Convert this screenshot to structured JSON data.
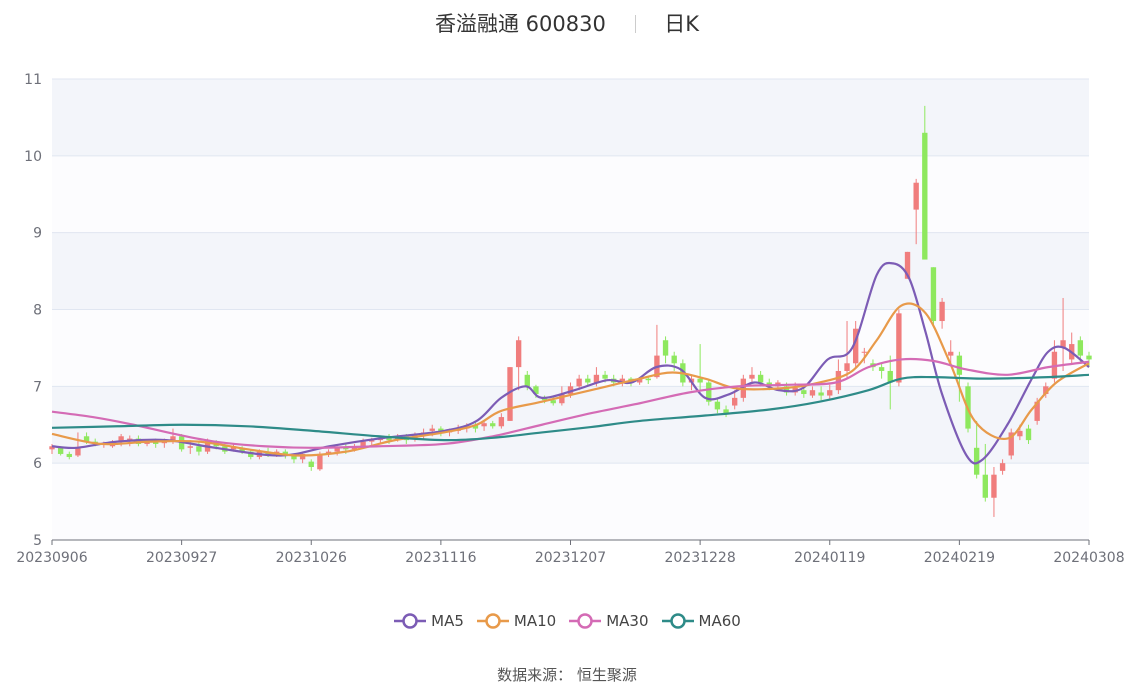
{
  "title": {
    "name": "香溢融通",
    "code": "600830",
    "period": "日K"
  },
  "source": "数据来源：  恒生聚源",
  "colors": {
    "up": "#f07d7d",
    "down": "#8ee85e",
    "grid": "#e0e6f1",
    "band": "#f3f5fa",
    "axis": "#6e7079"
  },
  "chart_data": {
    "type": "candlestick",
    "ylim": [
      5,
      11
    ],
    "yticks": [
      5,
      6,
      7,
      8,
      9,
      10,
      11
    ],
    "xtick_labels": [
      "20230906",
      "20230927",
      "20231026",
      "20231116",
      "20231207",
      "20231228",
      "20240119",
      "20240219",
      "20240308"
    ],
    "num_days": 121,
    "legend": [
      "MA5",
      "MA10",
      "MA30",
      "MA60"
    ],
    "series_colors": {
      "MA5": "#7c5cb5",
      "MA10": "#e89a4a",
      "MA30": "#d46bb5",
      "MA60": "#2e8b88"
    },
    "ohlc": [
      [
        6.18,
        6.22,
        6.12,
        6.25
      ],
      [
        6.2,
        6.12,
        6.1,
        6.22
      ],
      [
        6.12,
        6.08,
        6.05,
        6.15
      ],
      [
        6.1,
        6.2,
        6.08,
        6.4
      ],
      [
        6.35,
        6.28,
        6.25,
        6.4
      ],
      [
        6.28,
        6.25,
        6.22,
        6.32
      ],
      [
        6.24,
        6.25,
        6.2,
        6.28
      ],
      [
        6.22,
        6.28,
        6.2,
        6.3
      ],
      [
        6.28,
        6.35,
        6.22,
        6.38
      ],
      [
        6.3,
        6.32,
        6.22,
        6.36
      ],
      [
        6.32,
        6.25,
        6.22,
        6.36
      ],
      [
        6.25,
        6.28,
        6.22,
        6.3
      ],
      [
        6.28,
        6.25,
        6.2,
        6.32
      ],
      [
        6.26,
        6.28,
        6.2,
        6.32
      ],
      [
        6.3,
        6.35,
        6.25,
        6.45
      ],
      [
        6.35,
        6.18,
        6.15,
        6.38
      ],
      [
        6.2,
        6.22,
        6.12,
        6.3
      ],
      [
        6.22,
        6.15,
        6.1,
        6.28
      ],
      [
        6.15,
        6.3,
        6.12,
        6.32
      ],
      [
        6.28,
        6.22,
        6.18,
        6.3
      ],
      [
        6.22,
        6.15,
        6.12,
        6.25
      ],
      [
        6.18,
        6.22,
        6.15,
        6.25
      ],
      [
        6.2,
        6.15,
        6.12,
        6.22
      ],
      [
        6.15,
        6.08,
        6.05,
        6.18
      ],
      [
        6.08,
        6.15,
        6.05,
        6.18
      ],
      [
        6.15,
        6.12,
        6.08,
        6.2
      ],
      [
        6.12,
        6.15,
        6.08,
        6.18
      ],
      [
        6.15,
        6.1,
        6.06,
        6.18
      ],
      [
        6.1,
        6.05,
        6.0,
        6.12
      ],
      [
        6.05,
        6.12,
        6.0,
        6.15
      ],
      [
        6.02,
        5.95,
        5.9,
        6.05
      ],
      [
        5.92,
        6.12,
        5.9,
        6.15
      ],
      [
        6.12,
        6.15,
        6.08,
        6.18
      ],
      [
        6.15,
        6.2,
        6.1,
        6.22
      ],
      [
        6.2,
        6.18,
        6.12,
        6.25
      ],
      [
        6.18,
        6.22,
        6.15,
        6.25
      ],
      [
        6.22,
        6.28,
        6.2,
        6.32
      ],
      [
        6.28,
        6.3,
        6.22,
        6.33
      ],
      [
        6.3,
        6.33,
        6.25,
        6.35
      ],
      [
        6.33,
        6.3,
        6.25,
        6.38
      ],
      [
        6.3,
        6.35,
        6.28,
        6.38
      ],
      [
        6.35,
        6.3,
        6.25,
        6.38
      ],
      [
        6.32,
        6.36,
        6.28,
        6.4
      ],
      [
        6.36,
        6.4,
        6.32,
        6.45
      ],
      [
        6.42,
        6.45,
        6.35,
        6.5
      ],
      [
        6.45,
        6.4,
        6.35,
        6.48
      ],
      [
        6.4,
        6.42,
        6.35,
        6.45
      ],
      [
        6.42,
        6.45,
        6.38,
        6.5
      ],
      [
        6.45,
        6.48,
        6.4,
        6.52
      ],
      [
        6.5,
        6.45,
        6.4,
        6.55
      ],
      [
        6.48,
        6.52,
        6.42,
        6.55
      ],
      [
        6.52,
        6.48,
        6.45,
        6.55
      ],
      [
        6.48,
        6.6,
        6.45,
        6.65
      ],
      [
        6.55,
        7.25,
        6.55,
        7.25
      ],
      [
        7.25,
        7.6,
        6.95,
        7.65
      ],
      [
        7.15,
        7.0,
        6.95,
        7.2
      ],
      [
        7.0,
        6.9,
        6.85,
        7.02
      ],
      [
        6.85,
        6.82,
        6.78,
        6.88
      ],
      [
        6.82,
        6.78,
        6.75,
        6.88
      ],
      [
        6.78,
        6.9,
        6.75,
        7.0
      ],
      [
        6.9,
        7.0,
        6.85,
        7.05
      ],
      [
        7.0,
        7.1,
        6.95,
        7.15
      ],
      [
        7.1,
        7.05,
        7.0,
        7.15
      ],
      [
        7.05,
        7.15,
        7.0,
        7.25
      ],
      [
        7.15,
        7.1,
        7.05,
        7.2
      ],
      [
        7.1,
        7.05,
        7.0,
        7.15
      ],
      [
        7.05,
        7.1,
        7.0,
        7.15
      ],
      [
        7.1,
        7.05,
        7.0,
        7.12
      ],
      [
        7.05,
        7.1,
        7.02,
        7.12
      ],
      [
        7.1,
        7.08,
        7.03,
        7.12
      ],
      [
        7.12,
        7.4,
        7.1,
        7.8
      ],
      [
        7.6,
        7.4,
        7.3,
        7.65
      ],
      [
        7.4,
        7.3,
        7.2,
        7.45
      ],
      [
        7.3,
        7.05,
        7.0,
        7.35
      ],
      [
        7.05,
        7.1,
        6.95,
        7.15
      ],
      [
        7.1,
        7.05,
        6.95,
        7.55
      ],
      [
        7.05,
        6.8,
        6.75,
        7.1
      ],
      [
        6.8,
        6.7,
        6.65,
        6.85
      ],
      [
        6.7,
        6.65,
        6.6,
        6.75
      ],
      [
        6.75,
        6.85,
        6.7,
        6.95
      ],
      [
        6.85,
        7.1,
        6.8,
        7.15
      ],
      [
        7.1,
        7.15,
        7.05,
        7.25
      ],
      [
        7.15,
        7.05,
        7.0,
        7.2
      ],
      [
        7.05,
        7.0,
        6.95,
        7.1
      ],
      [
        7.0,
        7.05,
        6.95,
        7.08
      ],
      [
        7.0,
        6.92,
        6.88,
        7.05
      ],
      [
        6.92,
        6.98,
        6.88,
        7.05
      ],
      [
        6.95,
        6.9,
        6.85,
        7.0
      ],
      [
        6.88,
        6.95,
        6.85,
        7.0
      ],
      [
        6.92,
        6.88,
        6.82,
        7.0
      ],
      [
        6.88,
        6.95,
        6.82,
        7.02
      ],
      [
        6.95,
        7.2,
        6.9,
        7.35
      ],
      [
        7.2,
        7.3,
        7.1,
        7.85
      ],
      [
        7.3,
        7.75,
        7.25,
        7.85
      ],
      [
        7.45,
        7.45,
        7.3,
        7.5
      ],
      [
        7.3,
        7.25,
        7.2,
        7.35
      ],
      [
        7.25,
        7.2,
        7.1,
        7.3
      ],
      [
        7.2,
        7.05,
        6.7,
        7.4
      ],
      [
        7.05,
        7.95,
        7.0,
        8.0
      ],
      [
        8.4,
        8.75,
        8.4,
        8.75
      ],
      [
        9.3,
        9.65,
        8.85,
        9.7
      ],
      [
        10.3,
        8.65,
        8.65,
        10.65
      ],
      [
        8.55,
        7.85,
        7.8,
        8.55
      ],
      [
        7.85,
        8.1,
        7.75,
        8.15
      ],
      [
        7.4,
        7.45,
        7.3,
        7.6
      ],
      [
        7.4,
        7.15,
        6.8,
        7.45
      ],
      [
        7.0,
        6.45,
        6.4,
        7.05
      ],
      [
        6.2,
        5.85,
        5.8,
        6.55
      ],
      [
        5.85,
        5.55,
        5.5,
        6.25
      ],
      [
        5.55,
        5.85,
        5.3,
        5.95
      ],
      [
        5.9,
        6.0,
        5.85,
        6.05
      ],
      [
        6.1,
        6.4,
        6.05,
        6.45
      ],
      [
        6.35,
        6.42,
        6.3,
        6.5
      ],
      [
        6.45,
        6.3,
        6.25,
        6.5
      ],
      [
        6.55,
        6.8,
        6.5,
        6.85
      ],
      [
        6.9,
        7.0,
        6.85,
        7.05
      ],
      [
        7.1,
        7.45,
        7.05,
        7.6
      ],
      [
        7.5,
        7.6,
        7.2,
        8.15
      ],
      [
        7.35,
        7.55,
        7.3,
        7.7
      ],
      [
        7.6,
        7.4,
        7.3,
        7.65
      ],
      [
        7.4,
        7.35,
        7.25,
        7.45
      ]
    ],
    "ma_series": [
      {
        "name": "MA5",
        "points": [
          [
            0,
            6.22
          ],
          [
            3,
            6.2
          ],
          [
            8,
            6.28
          ],
          [
            14,
            6.3
          ],
          [
            20,
            6.2
          ],
          [
            28,
            6.1
          ],
          [
            34,
            6.22
          ],
          [
            40,
            6.32
          ],
          [
            48,
            6.42
          ],
          [
            52,
            6.55
          ],
          [
            55,
            6.85
          ],
          [
            58,
            7.0
          ],
          [
            60,
            6.85
          ],
          [
            64,
            6.95
          ],
          [
            68,
            7.08
          ],
          [
            71,
            7.05
          ],
          [
            74,
            7.25
          ],
          [
            77,
            7.22
          ],
          [
            80,
            6.85
          ],
          [
            83,
            6.9
          ],
          [
            86,
            7.05
          ],
          [
            89,
            6.95
          ],
          [
            92,
            6.98
          ],
          [
            95,
            7.35
          ],
          [
            98,
            7.5
          ],
          [
            101,
            8.45
          ],
          [
            103,
            8.6
          ],
          [
            105,
            8.4
          ],
          [
            107,
            7.7
          ],
          [
            109,
            6.9
          ],
          [
            112,
            6.1
          ],
          [
            114,
            6.05
          ],
          [
            117,
            6.5
          ],
          [
            120,
            7.1
          ],
          [
            122,
            7.45
          ],
          [
            124,
            7.5
          ],
          [
            127,
            7.25
          ]
        ]
      },
      {
        "name": "MA10",
        "points": [
          [
            0,
            6.38
          ],
          [
            6,
            6.25
          ],
          [
            12,
            6.28
          ],
          [
            18,
            6.28
          ],
          [
            24,
            6.18
          ],
          [
            30,
            6.1
          ],
          [
            36,
            6.15
          ],
          [
            42,
            6.3
          ],
          [
            48,
            6.4
          ],
          [
            52,
            6.5
          ],
          [
            55,
            6.68
          ],
          [
            60,
            6.8
          ],
          [
            66,
            6.95
          ],
          [
            72,
            7.1
          ],
          [
            76,
            7.18
          ],
          [
            80,
            7.1
          ],
          [
            84,
            6.97
          ],
          [
            90,
            6.98
          ],
          [
            94,
            7.05
          ],
          [
            98,
            7.2
          ],
          [
            101,
            7.6
          ],
          [
            104,
            8.05
          ],
          [
            107,
            7.95
          ],
          [
            110,
            7.3
          ],
          [
            113,
            6.55
          ],
          [
            117,
            6.32
          ],
          [
            120,
            6.7
          ],
          [
            123,
            7.05
          ],
          [
            127,
            7.3
          ]
        ]
      },
      {
        "name": "MA30",
        "points": [
          [
            0,
            6.67
          ],
          [
            5,
            6.6
          ],
          [
            10,
            6.5
          ],
          [
            15,
            6.38
          ],
          [
            20,
            6.28
          ],
          [
            26,
            6.22
          ],
          [
            32,
            6.2
          ],
          [
            40,
            6.22
          ],
          [
            48,
            6.25
          ],
          [
            54,
            6.35
          ],
          [
            60,
            6.5
          ],
          [
            66,
            6.65
          ],
          [
            72,
            6.78
          ],
          [
            78,
            6.92
          ],
          [
            84,
            7.0
          ],
          [
            90,
            7.02
          ],
          [
            96,
            7.05
          ],
          [
            100,
            7.25
          ],
          [
            104,
            7.35
          ],
          [
            108,
            7.33
          ],
          [
            112,
            7.22
          ],
          [
            117,
            7.15
          ],
          [
            122,
            7.25
          ],
          [
            127,
            7.32
          ]
        ]
      },
      {
        "name": "MA60",
        "points": [
          [
            0,
            6.46
          ],
          [
            8,
            6.48
          ],
          [
            16,
            6.5
          ],
          [
            24,
            6.48
          ],
          [
            32,
            6.42
          ],
          [
            40,
            6.35
          ],
          [
            48,
            6.3
          ],
          [
            54,
            6.33
          ],
          [
            60,
            6.4
          ],
          [
            66,
            6.47
          ],
          [
            72,
            6.55
          ],
          [
            80,
            6.62
          ],
          [
            88,
            6.7
          ],
          [
            94,
            6.8
          ],
          [
            100,
            6.95
          ],
          [
            104,
            7.1
          ],
          [
            108,
            7.12
          ],
          [
            114,
            7.1
          ],
          [
            122,
            7.12
          ],
          [
            127,
            7.15
          ]
        ]
      }
    ]
  }
}
